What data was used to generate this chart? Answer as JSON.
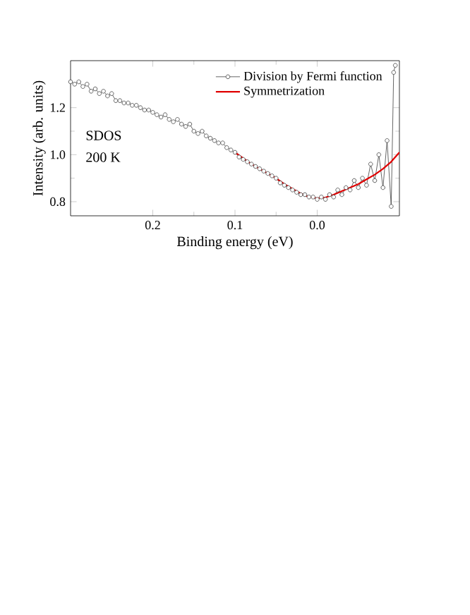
{
  "chart_data": {
    "type": "line",
    "xlabel": "Binding energy (eV)",
    "ylabel": "Intensity (arb. units)",
    "xlim": [
      0.3,
      -0.1
    ],
    "ylim": [
      0.74,
      1.4
    ],
    "xticks": [
      0.2,
      0.1,
      {
        "value": 0.0,
        "label": "0.0"
      }
    ],
    "yticks": [
      0.8,
      {
        "value": 1.0,
        "label": "1.0"
      },
      1.2
    ],
    "legend": "top right",
    "grid": false,
    "marker": "circle",
    "annotations": [
      "SDOS",
      "200 K"
    ],
    "series": [
      {
        "name": "Division by Fermi function",
        "color": "#404040",
        "x": [
          0.3,
          0.295,
          0.29,
          0.285,
          0.28,
          0.275,
          0.27,
          0.265,
          0.26,
          0.255,
          0.25,
          0.245,
          0.24,
          0.235,
          0.23,
          0.225,
          0.22,
          0.215,
          0.21,
          0.205,
          0.2,
          0.195,
          0.19,
          0.185,
          0.18,
          0.175,
          0.17,
          0.165,
          0.16,
          0.155,
          0.15,
          0.145,
          0.14,
          0.135,
          0.13,
          0.125,
          0.12,
          0.115,
          0.11,
          0.105,
          0.1,
          0.095,
          0.09,
          0.085,
          0.08,
          0.075,
          0.07,
          0.065,
          0.06,
          0.055,
          0.05,
          0.045,
          0.04,
          0.035,
          0.03,
          0.025,
          0.02,
          0.015,
          0.01,
          0.005,
          0.0,
          -0.005,
          -0.01,
          -0.015,
          -0.02,
          -0.025,
          -0.03,
          -0.035,
          -0.04,
          -0.045,
          -0.05,
          -0.055,
          -0.06,
          -0.065,
          -0.07,
          -0.075,
          -0.08,
          -0.085,
          -0.09,
          -0.093,
          -0.095
        ],
        "values": [
          1.31,
          1.3,
          1.31,
          1.29,
          1.3,
          1.27,
          1.28,
          1.26,
          1.27,
          1.25,
          1.26,
          1.23,
          1.23,
          1.22,
          1.22,
          1.21,
          1.21,
          1.2,
          1.19,
          1.19,
          1.18,
          1.17,
          1.16,
          1.17,
          1.15,
          1.14,
          1.15,
          1.13,
          1.12,
          1.13,
          1.1,
          1.09,
          1.1,
          1.08,
          1.07,
          1.06,
          1.05,
          1.05,
          1.03,
          1.02,
          1.01,
          0.99,
          0.98,
          0.97,
          0.96,
          0.95,
          0.94,
          0.93,
          0.92,
          0.91,
          0.9,
          0.88,
          0.87,
          0.86,
          0.85,
          0.84,
          0.83,
          0.83,
          0.82,
          0.82,
          0.81,
          0.82,
          0.81,
          0.83,
          0.82,
          0.85,
          0.83,
          0.86,
          0.85,
          0.89,
          0.86,
          0.9,
          0.87,
          0.96,
          0.89,
          1.0,
          0.86,
          1.06,
          0.78,
          1.35,
          1.38
        ]
      },
      {
        "name": "Symmetrization",
        "color": "#e00000",
        "marker": "none",
        "x": [
          0.1,
          0.09,
          0.08,
          0.07,
          0.06,
          0.05,
          0.04,
          0.03,
          0.02,
          0.01,
          0.0,
          -0.01,
          -0.02,
          -0.03,
          -0.04,
          -0.05,
          -0.06,
          -0.07,
          -0.08,
          -0.09,
          -0.1
        ],
        "values": [
          1.01,
          0.985,
          0.96,
          0.94,
          0.92,
          0.9,
          0.875,
          0.855,
          0.835,
          0.82,
          0.815,
          0.818,
          0.83,
          0.845,
          0.86,
          0.875,
          0.895,
          0.915,
          0.94,
          0.97,
          1.01
        ]
      }
    ]
  }
}
